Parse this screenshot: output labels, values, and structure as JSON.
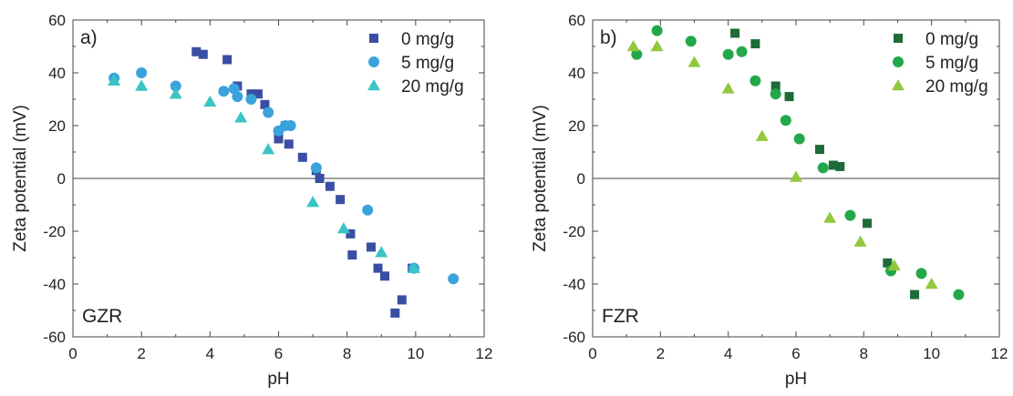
{
  "chart_data": [
    {
      "type": "scatter",
      "panel_label": "a)",
      "sample_label": "GZR",
      "xlabel": "pH",
      "ylabel": "Zeta potential (mV)",
      "xlim": [
        0,
        12
      ],
      "ylim": [
        -60,
        60
      ],
      "x_ticks": [
        0,
        2,
        4,
        6,
        8,
        10,
        12
      ],
      "y_ticks": [
        -60,
        -40,
        -20,
        0,
        20,
        40,
        60
      ],
      "zero_line": true,
      "grid": false,
      "legend_position": "top-right",
      "series": [
        {
          "name": "0 mg/g",
          "marker": "square",
          "color": "#3a4ea3",
          "points": [
            [
              3.6,
              48
            ],
            [
              3.8,
              47
            ],
            [
              4.5,
              45
            ],
            [
              4.8,
              35
            ],
            [
              5.2,
              32
            ],
            [
              5.4,
              32
            ],
            [
              5.6,
              28
            ],
            [
              6.0,
              15
            ],
            [
              6.2,
              20
            ],
            [
              6.3,
              13
            ],
            [
              6.7,
              8
            ],
            [
              7.1,
              3
            ],
            [
              7.2,
              0
            ],
            [
              7.5,
              -3
            ],
            [
              7.8,
              -8
            ],
            [
              8.1,
              -21
            ],
            [
              8.15,
              -29
            ],
            [
              8.7,
              -26
            ],
            [
              8.9,
              -34
            ],
            [
              9.1,
              -37
            ],
            [
              9.4,
              -51
            ],
            [
              9.6,
              -46
            ],
            [
              9.9,
              -34
            ]
          ]
        },
        {
          "name": "5 mg/g",
          "marker": "circle",
          "color": "#3aa3db",
          "points": [
            [
              1.2,
              38
            ],
            [
              2.0,
              40
            ],
            [
              3.0,
              35
            ],
            [
              4.4,
              33
            ],
            [
              4.7,
              34
            ],
            [
              4.8,
              31
            ],
            [
              5.2,
              30
            ],
            [
              5.7,
              25
            ],
            [
              6.0,
              18
            ],
            [
              6.2,
              20
            ],
            [
              6.35,
              20
            ],
            [
              7.1,
              4
            ],
            [
              8.6,
              -12
            ],
            [
              9.95,
              -34
            ],
            [
              11.1,
              -38
            ]
          ]
        },
        {
          "name": "20 mg/g",
          "marker": "triangle",
          "color": "#3cc4c4",
          "points": [
            [
              1.2,
              37
            ],
            [
              2.0,
              35
            ],
            [
              3.0,
              32
            ],
            [
              4.0,
              29
            ],
            [
              4.9,
              23
            ],
            [
              5.7,
              11
            ],
            [
              7.0,
              -9
            ],
            [
              7.9,
              -19
            ],
            [
              9.0,
              -28
            ],
            [
              9.95,
              -34
            ]
          ]
        }
      ]
    },
    {
      "type": "scatter",
      "panel_label": "b)",
      "sample_label": "FZR",
      "xlabel": "pH",
      "ylabel": "Zeta potential (mV)",
      "xlim": [
        0,
        12
      ],
      "ylim": [
        -60,
        60
      ],
      "x_ticks": [
        0,
        2,
        4,
        6,
        8,
        10,
        12
      ],
      "y_ticks": [
        -60,
        -40,
        -20,
        0,
        20,
        40,
        60
      ],
      "zero_line": true,
      "grid": false,
      "legend_position": "top-right",
      "series": [
        {
          "name": "0 mg/g",
          "marker": "square",
          "color": "#1e6b38",
          "points": [
            [
              4.2,
              55
            ],
            [
              4.8,
              51
            ],
            [
              5.4,
              35
            ],
            [
              5.8,
              31
            ],
            [
              6.7,
              11
            ],
            [
              7.1,
              5
            ],
            [
              7.3,
              4.5
            ],
            [
              8.1,
              -17
            ],
            [
              8.7,
              -32
            ],
            [
              9.5,
              -44
            ]
          ]
        },
        {
          "name": "5 mg/g",
          "marker": "circle",
          "color": "#22a84a",
          "points": [
            [
              1.3,
              47
            ],
            [
              1.9,
              56
            ],
            [
              2.9,
              52
            ],
            [
              4.0,
              47
            ],
            [
              4.4,
              48
            ],
            [
              4.8,
              37
            ],
            [
              5.4,
              32
            ],
            [
              5.7,
              22
            ],
            [
              6.1,
              15
            ],
            [
              6.8,
              4
            ],
            [
              7.6,
              -14
            ],
            [
              8.8,
              -35
            ],
            [
              9.7,
              -36
            ],
            [
              10.8,
              -44
            ]
          ]
        },
        {
          "name": "20 mg/g",
          "marker": "triangle",
          "color": "#92c83e",
          "points": [
            [
              1.2,
              50
            ],
            [
              1.9,
              50
            ],
            [
              3.0,
              44
            ],
            [
              4.0,
              34
            ],
            [
              5.0,
              16
            ],
            [
              6.0,
              0.5
            ],
            [
              7.0,
              -15
            ],
            [
              7.9,
              -24
            ],
            [
              8.9,
              -33
            ],
            [
              10.0,
              -40
            ]
          ]
        }
      ]
    }
  ]
}
